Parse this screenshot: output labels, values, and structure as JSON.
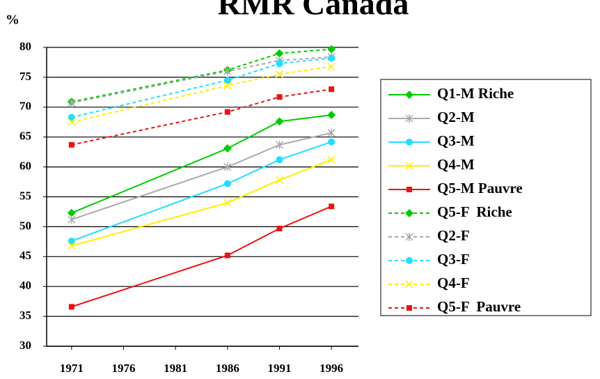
{
  "chart_data": {
    "type": "line",
    "title": "RMR Canada",
    "y_label": "%",
    "x": [
      1971,
      1986,
      1991,
      1996
    ],
    "xlim": [
      1968.6,
      1998.6
    ],
    "xticks": [
      1971,
      1976,
      1981,
      1986,
      1991,
      1996
    ],
    "ylim": [
      30,
      80
    ],
    "yticks": [
      30,
      35,
      40,
      45,
      50,
      55,
      60,
      65,
      70,
      75,
      80
    ],
    "grid": true,
    "series": [
      {
        "name": "Q1-M Riche",
        "color": "#00cc00",
        "marker": "diamond",
        "dashed": false,
        "values": [
          52.3,
          63.1,
          67.6,
          68.7
        ]
      },
      {
        "name": "Q2-M",
        "color": "#aaaaaa",
        "marker": "star",
        "dashed": false,
        "values": [
          51.2,
          60.0,
          63.7,
          65.7
        ]
      },
      {
        "name": "Q3-M",
        "color": "#22ddff",
        "marker": "circle",
        "dashed": false,
        "values": [
          47.6,
          57.2,
          61.2,
          64.2
        ]
      },
      {
        "name": "Q4-M",
        "color": "#ffee00",
        "marker": "x",
        "dashed": false,
        "values": [
          46.8,
          54.0,
          57.8,
          61.2
        ]
      },
      {
        "name": "Q5-M Pauvre",
        "color": "#ee1111",
        "marker": "square",
        "dashed": false,
        "values": [
          36.6,
          45.2,
          49.7,
          53.4
        ]
      },
      {
        "name": "Q5-F  Riche",
        "color": "#00cc00",
        "marker": "diamond",
        "dashed": true,
        "values": [
          70.9,
          76.2,
          79.0,
          79.7
        ]
      },
      {
        "name": "Q2-F",
        "color": "#aaaaaa",
        "marker": "star",
        "dashed": true,
        "values": [
          70.7,
          76.0,
          77.8,
          78.4
        ]
      },
      {
        "name": "Q3-F",
        "color": "#22ddff",
        "marker": "circle",
        "dashed": true,
        "values": [
          68.3,
          74.5,
          77.3,
          78.2
        ]
      },
      {
        "name": "Q4-F",
        "color": "#ffee00",
        "marker": "x",
        "dashed": true,
        "values": [
          67.5,
          73.6,
          75.5,
          76.8
        ]
      },
      {
        "name": "Q5-F  Pauvre",
        "color": "#ee1111",
        "marker": "square",
        "dashed": true,
        "values": [
          63.7,
          69.2,
          71.7,
          73.0
        ]
      }
    ]
  }
}
